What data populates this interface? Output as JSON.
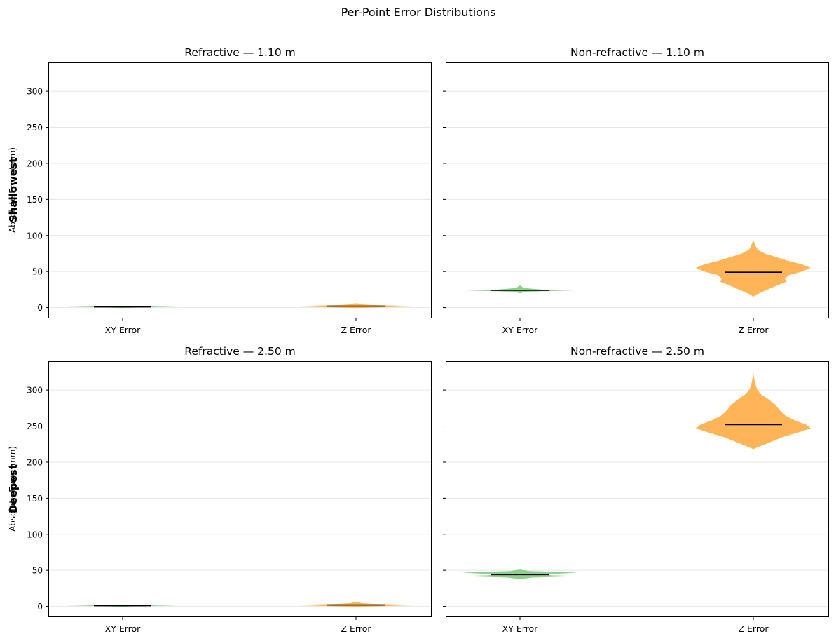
{
  "figure_title": "Per-Point Error Distributions",
  "colors": {
    "xy": "#79c779",
    "z": "#ffb14e",
    "median": "#000000",
    "grid": "#e6e6e6"
  },
  "row_labels": [
    "Shallowest",
    "Deepest"
  ],
  "ylabel": "Absolute Error (mm)",
  "chart_data": [
    {
      "type": "violin",
      "title": "Refractive — 1.10 m",
      "categories": [
        "XY Error",
        "Z Error"
      ],
      "ylim": [
        -15,
        340
      ],
      "yticks": [
        0,
        50,
        100,
        150,
        200,
        250,
        300
      ],
      "grid": "horizontal",
      "series": [
        {
          "name": "XY Error",
          "median": 1,
          "min": -0.5,
          "max": 2.5,
          "profile": [
            [
              -0.5,
              0.02
            ],
            [
              0.5,
              0.4
            ],
            [
              1,
              1
            ],
            [
              1.5,
              0.4
            ],
            [
              2.5,
              0.02
            ]
          ]
        },
        {
          "name": "Z Error",
          "median": 2,
          "min": -0.5,
          "max": 6,
          "profile": [
            [
              -0.5,
              0.05
            ],
            [
              0.5,
              0.5
            ],
            [
              1.5,
              1
            ],
            [
              2.5,
              0.8
            ],
            [
              3.5,
              0.3
            ],
            [
              4.5,
              0.1
            ],
            [
              5.5,
              0.05
            ],
            [
              6,
              0
            ]
          ]
        }
      ]
    },
    {
      "type": "violin",
      "title": "Non-refractive — 1.10 m",
      "categories": [
        "XY Error",
        "Z Error"
      ],
      "ylim": [
        -15,
        340
      ],
      "yticks": [
        0,
        50,
        100,
        150,
        200,
        250,
        300
      ],
      "grid": "horizontal",
      "series": [
        {
          "name": "XY Error",
          "median": 24,
          "min": 20,
          "max": 31,
          "profile": [
            [
              20,
              0.01
            ],
            [
              22,
              0.1
            ],
            [
              23,
              0.6
            ],
            [
              24,
              1
            ],
            [
              25,
              0.4
            ],
            [
              27,
              0.08
            ],
            [
              29,
              0.03
            ],
            [
              31,
              0
            ]
          ]
        },
        {
          "name": "Z Error",
          "median": 49,
          "min": 15,
          "max": 93,
          "profile": [
            [
              15,
              0
            ],
            [
              18,
              0.05
            ],
            [
              25,
              0.25
            ],
            [
              32,
              0.45
            ],
            [
              36,
              0.58
            ],
            [
              40,
              0.55
            ],
            [
              45,
              0.62
            ],
            [
              50,
              0.85
            ],
            [
              55,
              1
            ],
            [
              60,
              0.85
            ],
            [
              65,
              0.6
            ],
            [
              70,
              0.4
            ],
            [
              75,
              0.2
            ],
            [
              80,
              0.08
            ],
            [
              85,
              0.04
            ],
            [
              90,
              0.02
            ],
            [
              93,
              0
            ]
          ]
        }
      ]
    },
    {
      "type": "violin",
      "title": "Refractive — 2.50 m",
      "categories": [
        "XY Error",
        "Z Error"
      ],
      "ylim": [
        -15,
        340
      ],
      "yticks": [
        0,
        50,
        100,
        150,
        200,
        250,
        300
      ],
      "grid": "horizontal",
      "series": [
        {
          "name": "XY Error",
          "median": 1,
          "min": -0.5,
          "max": 2.5,
          "profile": [
            [
              -0.5,
              0.02
            ],
            [
              0.5,
              0.4
            ],
            [
              1,
              1
            ],
            [
              1.5,
              0.4
            ],
            [
              2.5,
              0.02
            ]
          ]
        },
        {
          "name": "Z Error",
          "median": 2,
          "min": -0.5,
          "max": 6,
          "profile": [
            [
              -0.5,
              0.05
            ],
            [
              0.5,
              0.5
            ],
            [
              1.5,
              1
            ],
            [
              2.5,
              0.8
            ],
            [
              3.5,
              0.3
            ],
            [
              4.5,
              0.1
            ],
            [
              5.5,
              0.05
            ],
            [
              6,
              0
            ]
          ]
        }
      ]
    },
    {
      "type": "violin",
      "title": "Non-refractive — 2.50 m",
      "categories": [
        "XY Error",
        "Z Error"
      ],
      "ylim": [
        -15,
        340
      ],
      "yticks": [
        0,
        50,
        100,
        150,
        200,
        250,
        300
      ],
      "grid": "horizontal",
      "series": [
        {
          "name": "XY Error",
          "median": 44,
          "min": 38,
          "max": 51,
          "profile": [
            [
              38,
              0.02
            ],
            [
              40,
              0.2
            ],
            [
              41,
              0.6
            ],
            [
              42,
              0.9
            ],
            [
              43,
              0.5
            ],
            [
              44,
              0.4
            ],
            [
              45,
              0.5
            ],
            [
              46,
              0.75
            ],
            [
              47,
              0.9
            ],
            [
              48,
              0.55
            ],
            [
              49,
              0.15
            ],
            [
              51,
              0
            ]
          ]
        },
        {
          "name": "Z Error",
          "median": 252,
          "min": 218,
          "max": 325,
          "profile": [
            [
              218,
              0
            ],
            [
              222,
              0.12
            ],
            [
              228,
              0.3
            ],
            [
              235,
              0.52
            ],
            [
              242,
              0.82
            ],
            [
              247,
              1
            ],
            [
              252,
              0.92
            ],
            [
              258,
              0.72
            ],
            [
              265,
              0.55
            ],
            [
              272,
              0.46
            ],
            [
              280,
              0.38
            ],
            [
              288,
              0.25
            ],
            [
              295,
              0.12
            ],
            [
              302,
              0.06
            ],
            [
              310,
              0.03
            ],
            [
              318,
              0.01
            ],
            [
              325,
              0
            ]
          ]
        }
      ]
    }
  ]
}
